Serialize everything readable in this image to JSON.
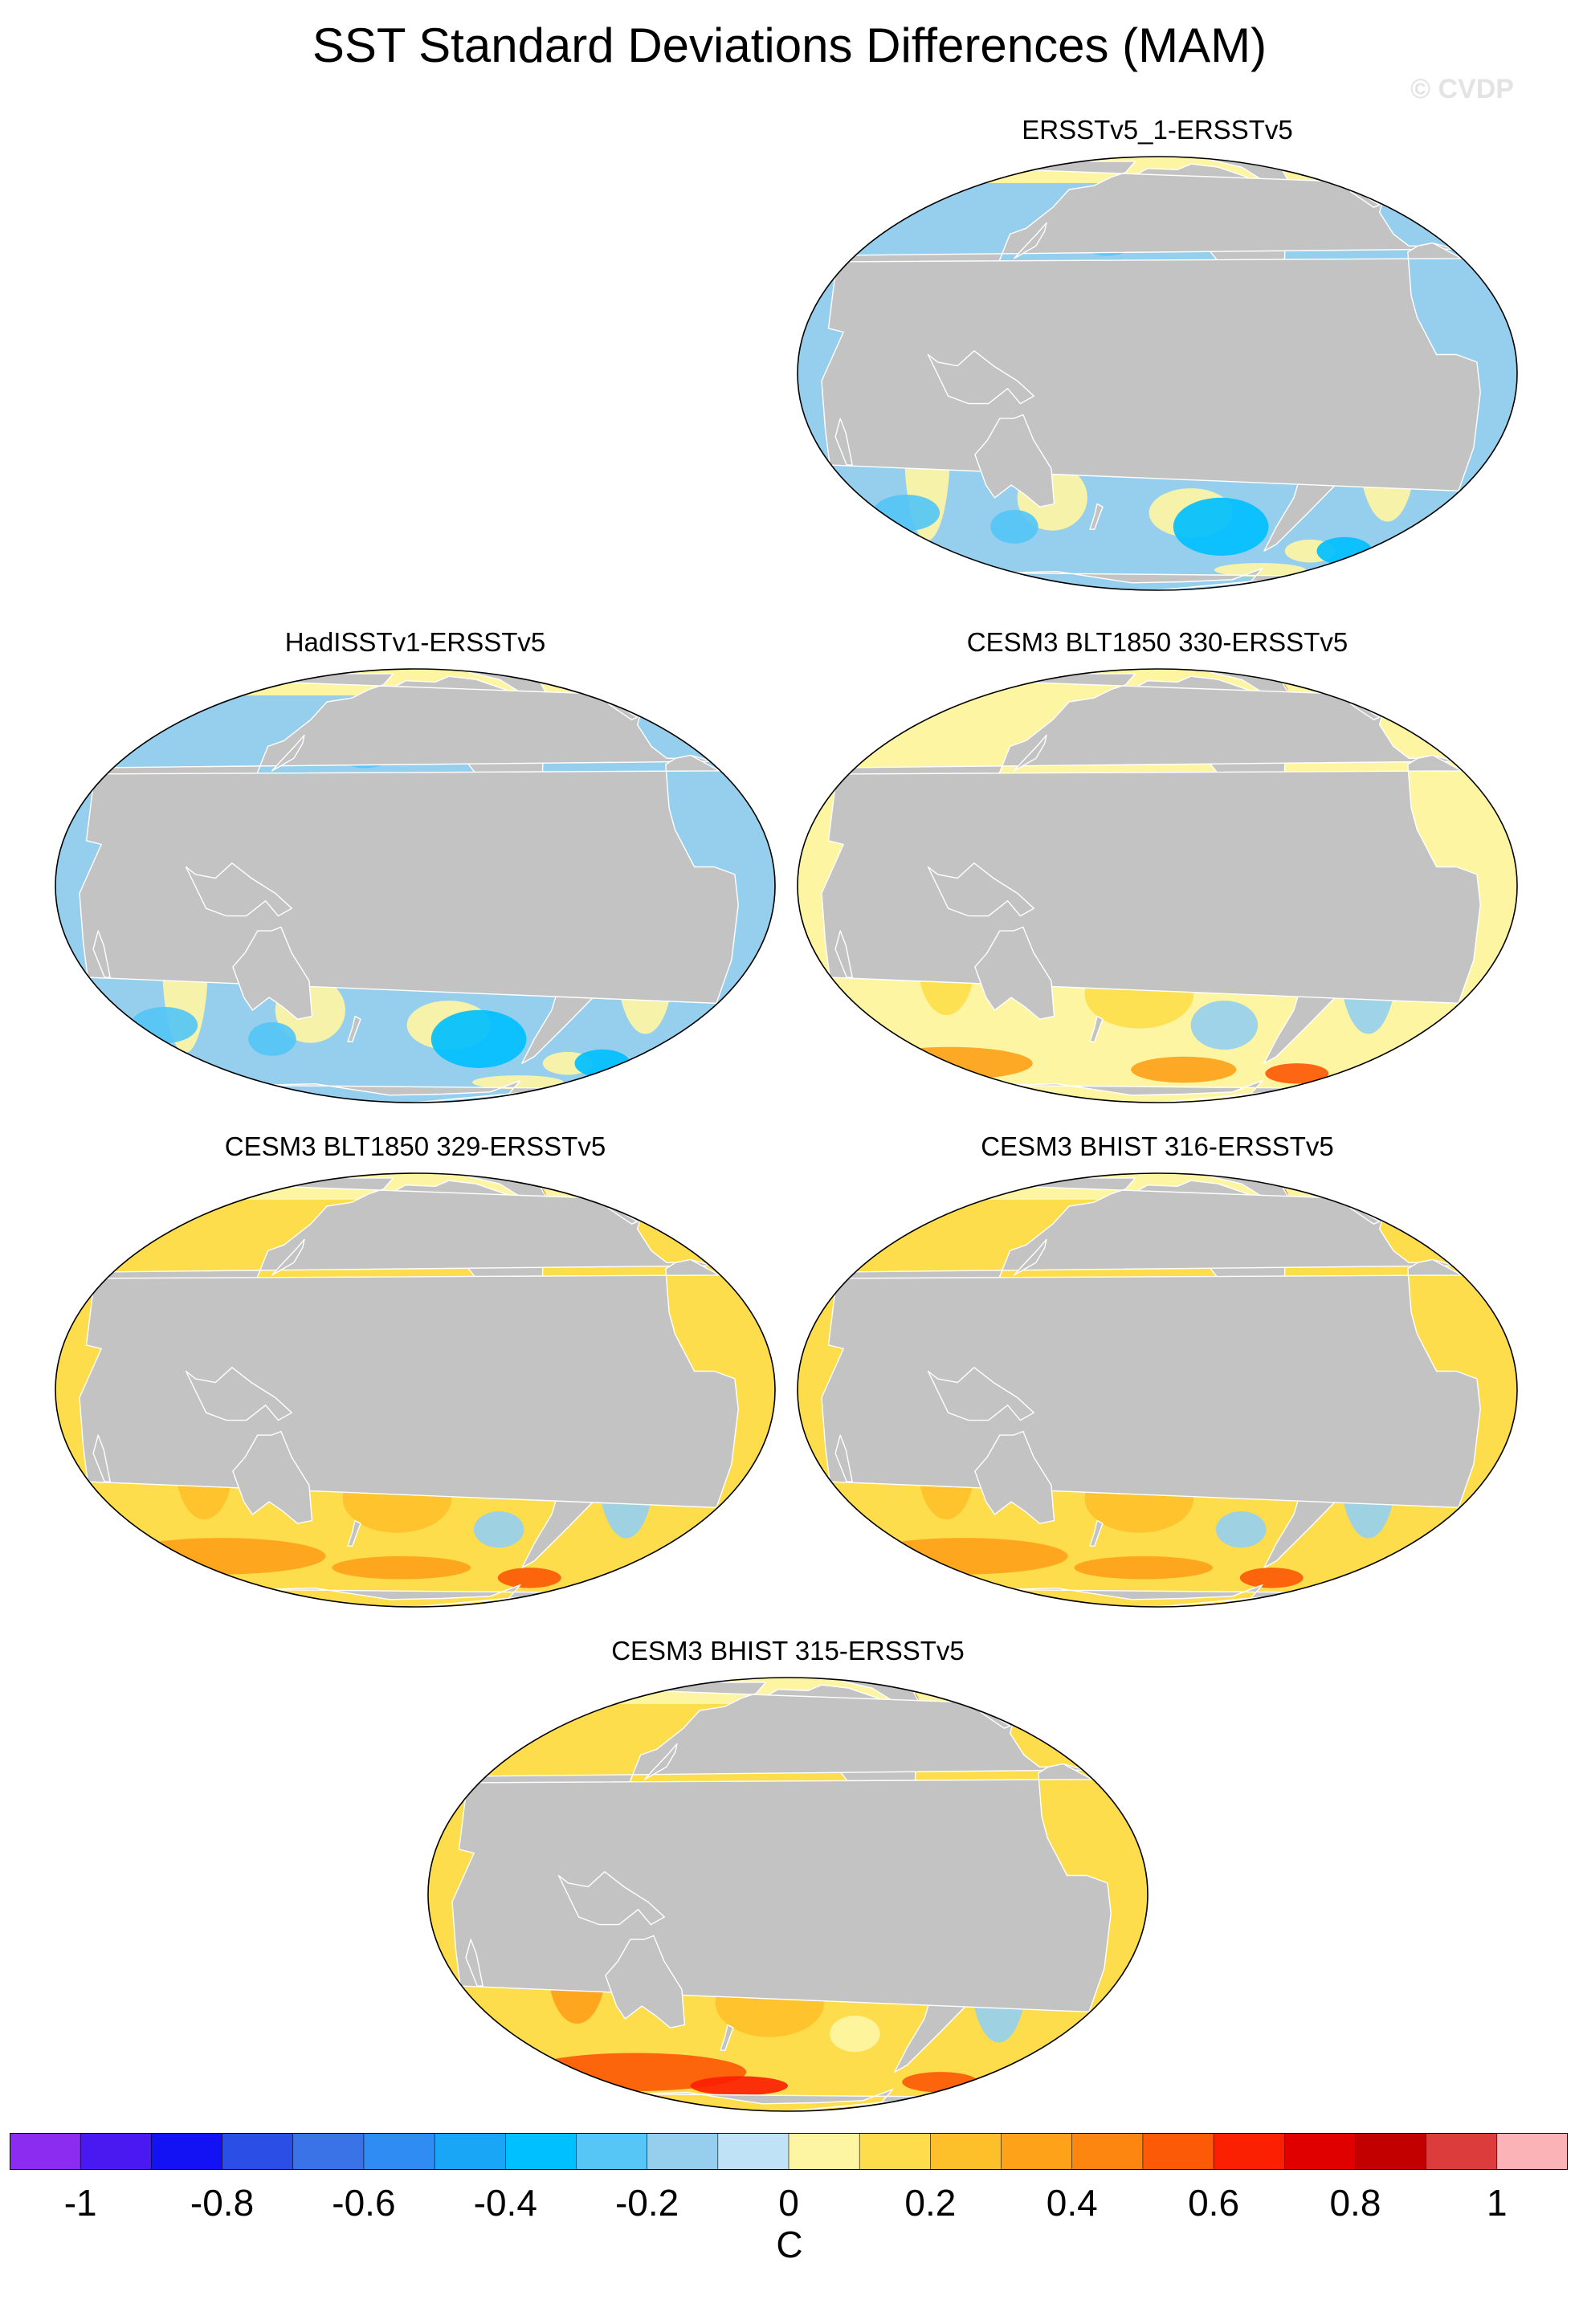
{
  "title": "SST Standard Deviations Differences (MAM)",
  "watermark": "© CVDP",
  "panels": [
    {
      "label": "ERSSTv5_1-ERSSTv5",
      "pattern": "cool"
    },
    {
      "label": "HadISSTv1-ERSSTv5",
      "pattern": "cool"
    },
    {
      "label": "CESM3 BLT1850 330-ERSSTv5",
      "pattern": "mixed"
    },
    {
      "label": "CESM3 BLT1850 329-ERSSTv5",
      "pattern": "warm"
    },
    {
      "label": "CESM3 BHIST 316-ERSSTv5",
      "pattern": "warm"
    },
    {
      "label": "CESM3 BHIST 315-ERSSTv5",
      "pattern": "hot"
    }
  ],
  "colorbar": {
    "unit": "C",
    "range": [
      -1,
      1
    ],
    "colors": [
      "#8c2cf0",
      "#4a18f0",
      "#1212f5",
      "#2b4fe6",
      "#3a73e8",
      "#2f8cf2",
      "#1aa6f7",
      "#00c0ff",
      "#55c6f5",
      "#96cfee",
      "#bfe2f6",
      "#fef5a3",
      "#fedd4c",
      "#fec02a",
      "#fea21a",
      "#fd8610",
      "#fd5a08",
      "#fb2002",
      "#e00000",
      "#c20000",
      "#dc3c3c",
      "#fbb3b8"
    ],
    "ticks": [
      "-1",
      "-0.8",
      "-0.6",
      "-0.4",
      "-0.2",
      "0",
      "0.2",
      "0.4",
      "0.6",
      "0.8",
      "1"
    ]
  },
  "map_colors": {
    "land": "#c3c3c3",
    "coast": "#ffffff",
    "arctic": "#fef5a3"
  }
}
